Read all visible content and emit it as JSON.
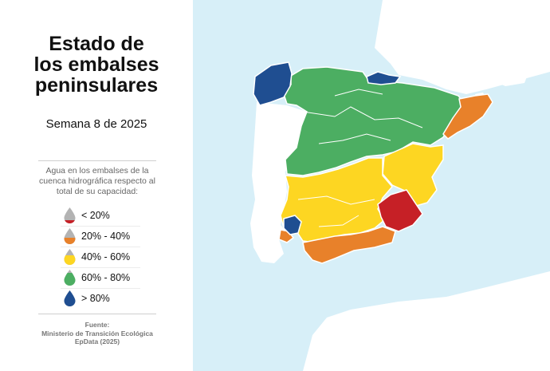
{
  "title_lines": [
    "Estado de",
    "los embalses",
    "peninsulares"
  ],
  "subtitle": "Semana 8 de 2025",
  "description": "Agua en los embalses de la cuenca hidrográfica respecto al total de su capacidad:",
  "legend": [
    {
      "label": "< 20%",
      "color": "#c62026",
      "fill_fraction": 0.2
    },
    {
      "label": "20% - 40%",
      "color": "#e8812a",
      "fill_fraction": 0.4
    },
    {
      "label": "40% - 60%",
      "color": "#fdd622",
      "fill_fraction": 0.6
    },
    {
      "label": "60% - 80%",
      "color": "#4cae62",
      "fill_fraction": 0.8
    },
    {
      "label": "> 80%",
      "color": "#1f4e91",
      "fill_fraction": 1.0
    }
  ],
  "source": {
    "heading": "Fuente:",
    "lines": [
      "Ministerio de Transición Ecológica",
      "EpData (2025)"
    ]
  },
  "colors": {
    "sea": "#d7eff8",
    "land_other": "#ffffff",
    "border": "#ffffff",
    "drop_empty": "#b3b3b3"
  },
  "map_regions": [
    {
      "name": "Miño-Sil / Galicia Costa",
      "level": "> 80%"
    },
    {
      "name": "Cantábrico Oriental",
      "level": "> 80%"
    },
    {
      "name": "Guadalete-Barbate",
      "level": "> 80%"
    },
    {
      "name": "Cantábrico / Duero / Ebro / Tajo",
      "level": "60% - 80%"
    },
    {
      "name": "Guadiana / Júcar / Guadalquivir",
      "level": "40% - 60%"
    },
    {
      "name": "Cataluña Interior / Mediterránea Andaluza / Tinto-Odiel",
      "level": "20% - 40%"
    },
    {
      "name": "Segura",
      "level": "< 20%"
    }
  ]
}
